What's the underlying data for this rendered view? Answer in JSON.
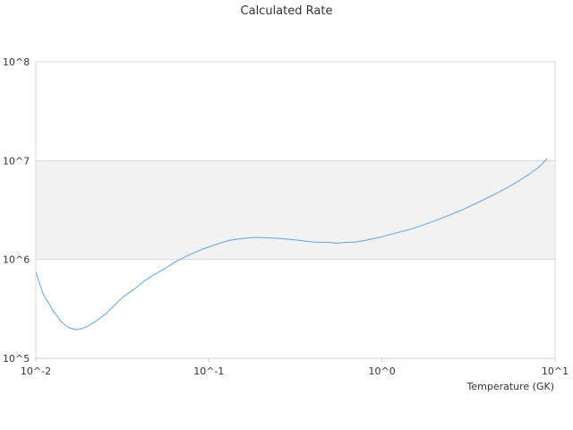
{
  "chart_data": {
    "type": "line",
    "title": "Calculated Rate",
    "xlabel": "Temperature (GK)",
    "ylabel": "",
    "xscale": "log",
    "yscale": "log",
    "xlim": [
      0.01,
      10
    ],
    "ylim": [
      100000,
      100000000
    ],
    "x_ticks": [
      "10^-2",
      "10^-1",
      "10^0",
      "10^1"
    ],
    "y_ticks": [
      "10^8",
      "10^7",
      "10^6",
      "10^5"
    ],
    "grid": "horizontal",
    "band_colors": [
      "#ffffff",
      "#f2f2f2",
      "#ffffff"
    ],
    "line_color": "#5aa5e6",
    "series": [
      {
        "x": [
          0.01,
          0.011,
          0.0125,
          0.014,
          0.0155,
          0.017,
          0.0185,
          0.02,
          0.022,
          0.025,
          0.028,
          0.032,
          0.037,
          0.042,
          0.048,
          0.055,
          0.063,
          0.072,
          0.082,
          0.095,
          0.11,
          0.13,
          0.15,
          0.18,
          0.2,
          0.25,
          0.3,
          0.35,
          0.4,
          0.5,
          0.55,
          0.6,
          0.7,
          0.8,
          1.0,
          1.2,
          1.5,
          2.0,
          2.5,
          3.0,
          4.0,
          5.0,
          6.0,
          7.0,
          8.0,
          9.0
        ],
        "y": [
          750000,
          450000,
          310000,
          235000,
          205000,
          195000,
          200000,
          212000,
          235000,
          275000,
          335000,
          420000,
          500000,
          600000,
          700000,
          800000,
          930000,
          1050000,
          1170000,
          1300000,
          1420000,
          1560000,
          1620000,
          1670000,
          1670000,
          1640000,
          1590000,
          1550000,
          1500000,
          1490000,
          1460000,
          1490000,
          1500000,
          1560000,
          1700000,
          1850000,
          2050000,
          2450000,
          2850000,
          3250000,
          4150000,
          5050000,
          6050000,
          7200000,
          8500000,
          10500000
        ]
      }
    ]
  }
}
